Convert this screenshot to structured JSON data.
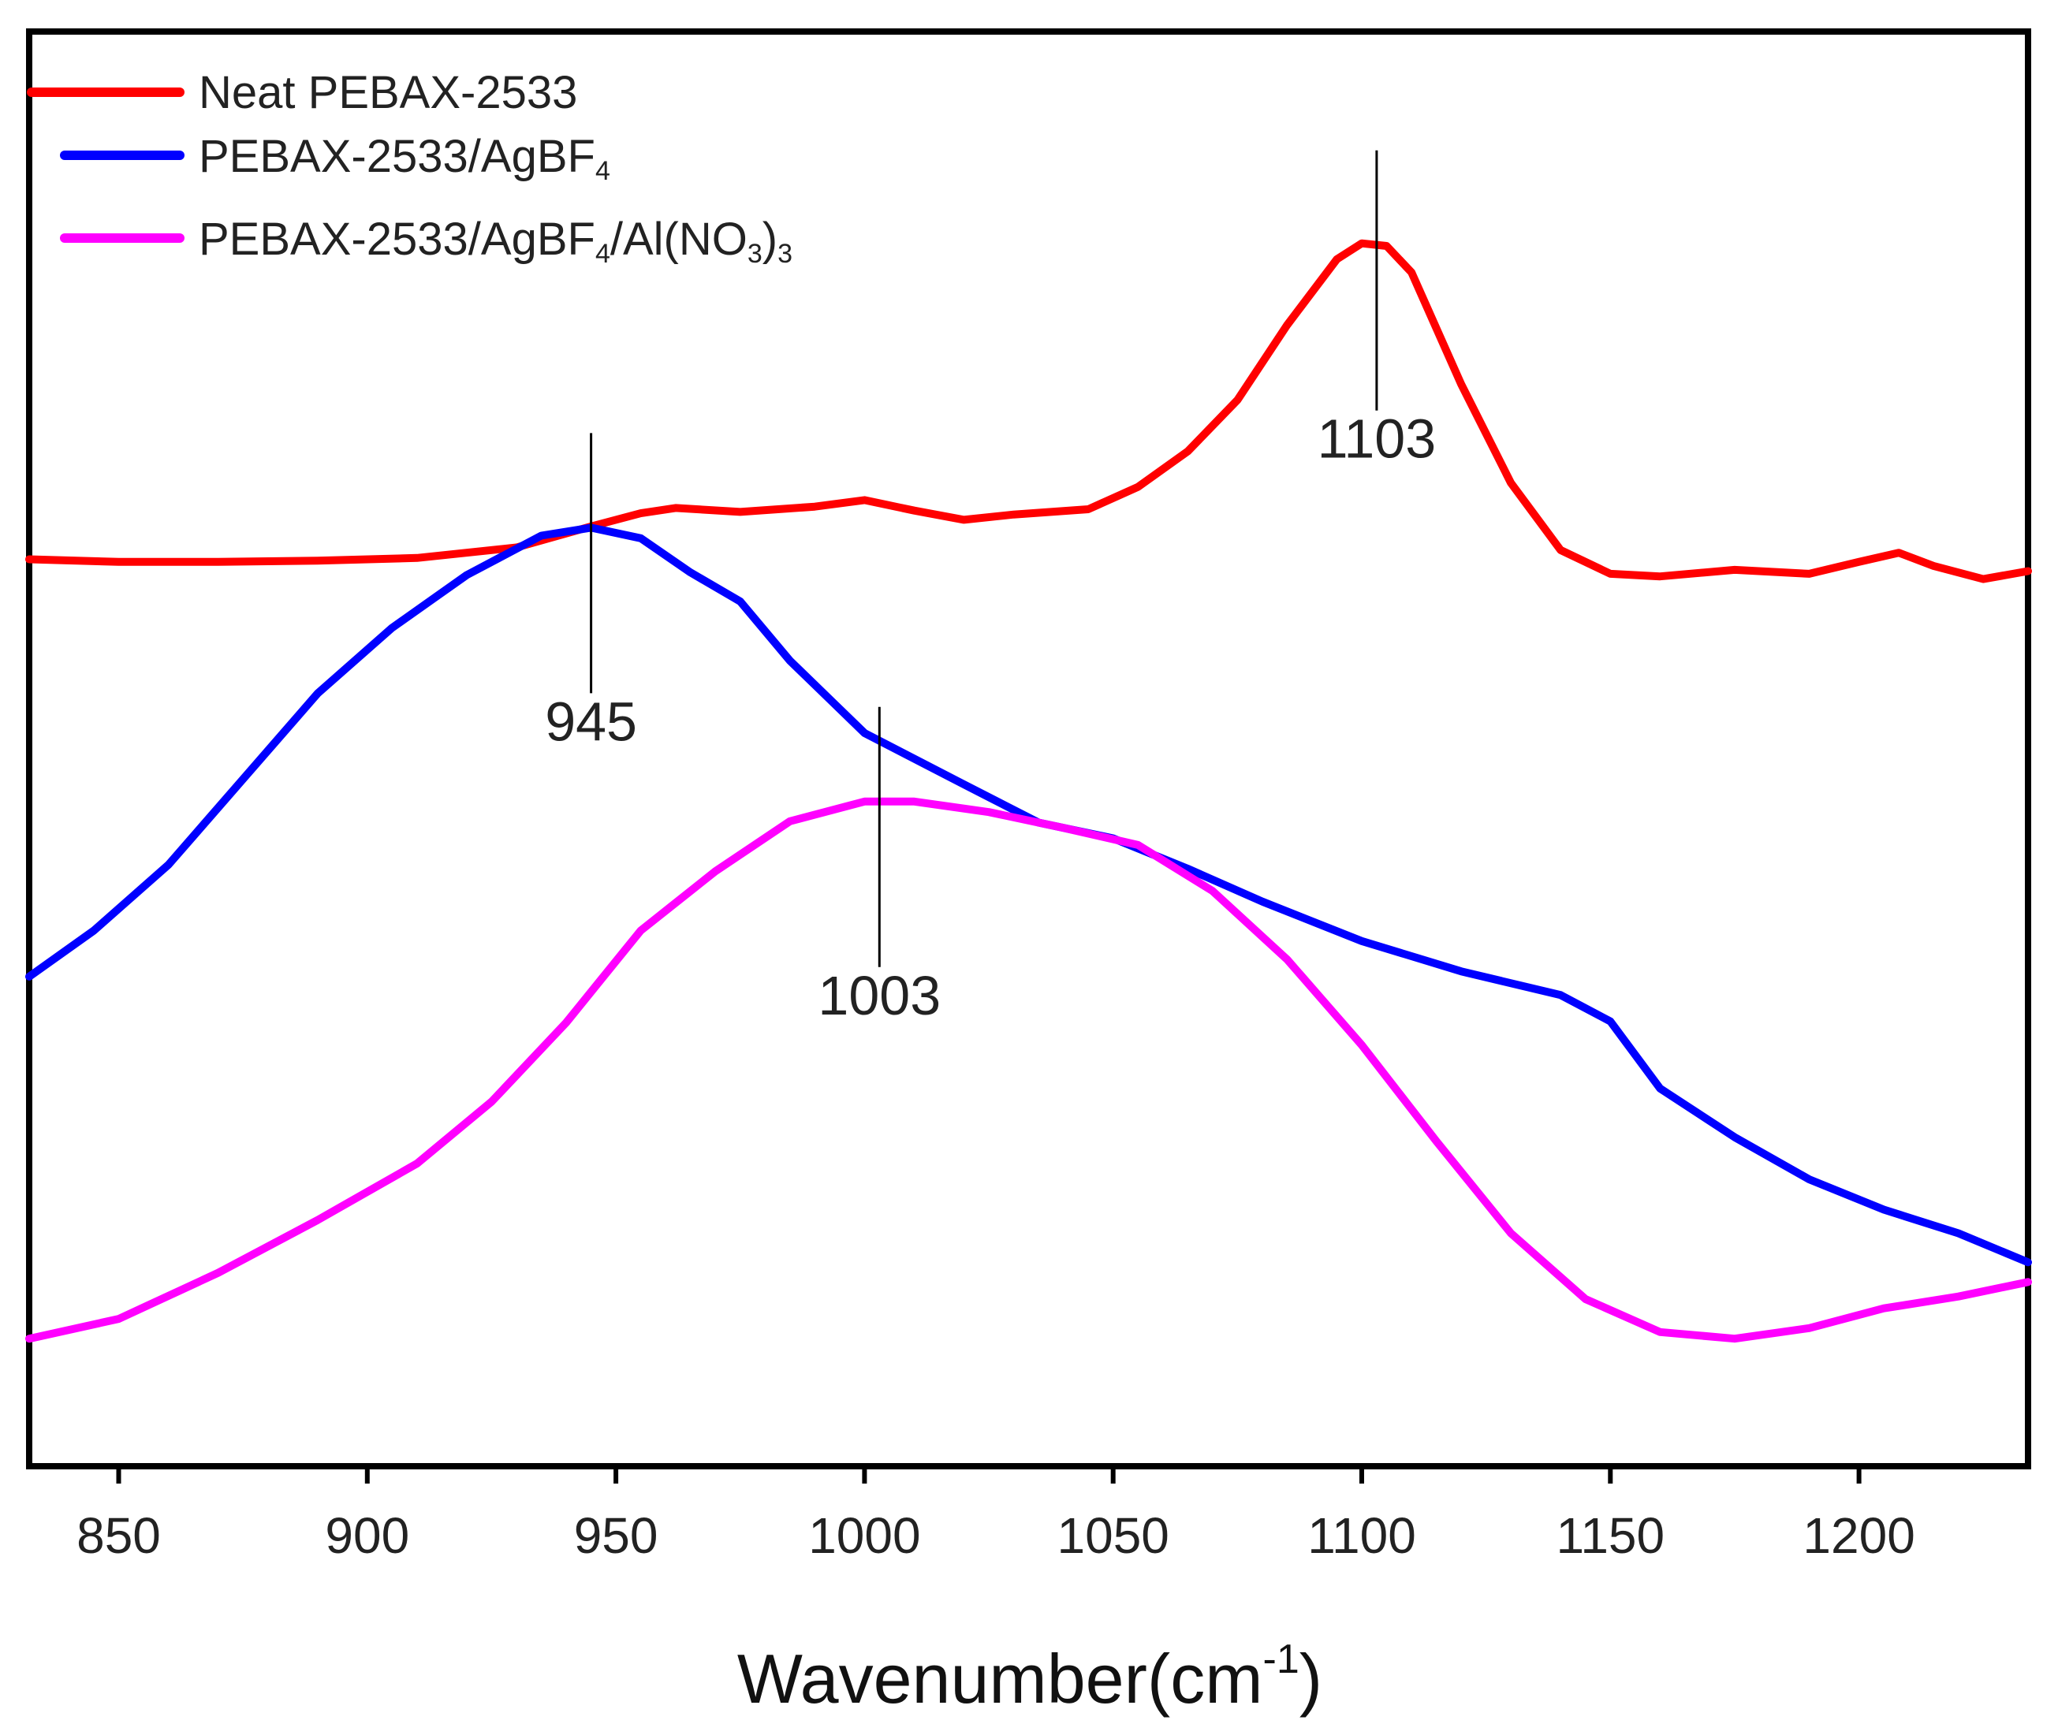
{
  "chart_data": {
    "type": "line",
    "title": "",
    "xlabel": "Wavenumber(cm",
    "xlabel_sup": "-1",
    "xlabel_close": ")",
    "ylabel": "",
    "xlim": [
      832,
      1234
    ],
    "ylim": [
      0,
      100
    ],
    "y_ticks_shown": false,
    "x_ticks": [
      850,
      900,
      950,
      1000,
      1050,
      1100,
      1150,
      1200
    ],
    "x_tick_labels": [
      "850",
      "900",
      "950",
      "1000",
      "1050",
      "1100",
      "1150",
      "1200"
    ],
    "grid": false,
    "legend_position": "top-left",
    "series": [
      {
        "name": "Neat PEBAX-2533",
        "legend": {
          "main": "Neat PEBAX-2533"
        },
        "color": "#ff0000",
        "x": [
          832,
          850,
          870,
          890,
          910,
          930,
          945,
          955,
          962,
          975,
          990,
          1000,
          1010,
          1020,
          1030,
          1045,
          1055,
          1065,
          1075,
          1085,
          1095,
          1100,
          1105,
          1110,
          1120,
          1130,
          1140,
          1150,
          1160,
          1175,
          1190,
          1200,
          1208,
          1215,
          1225,
          1234
        ],
        "y": [
          64.7,
          64.5,
          64.5,
          64.6,
          64.8,
          65.6,
          67.2,
          68.2,
          68.6,
          68.3,
          68.7,
          69.2,
          68.4,
          67.7,
          68.1,
          68.5,
          70.2,
          72.9,
          76.8,
          82.5,
          87.5,
          88.7,
          88.5,
          86.5,
          78.0,
          70.5,
          65.4,
          63.6,
          63.4,
          63.9,
          63.6,
          64.5,
          65.2,
          64.2,
          63.2,
          63.8
        ]
      },
      {
        "name": "PEBAX-2533/AgBF4",
        "legend": {
          "main": "PEBAX-2533/AgBF",
          "sub": "4"
        },
        "color": "#0000ff",
        "x": [
          832,
          845,
          860,
          875,
          890,
          905,
          920,
          935,
          945,
          955,
          965,
          975,
          985,
          1000,
          1020,
          1035,
          1050,
          1065,
          1080,
          1100,
          1120,
          1140,
          1150,
          1160,
          1175,
          1190,
          1205,
          1220,
          1234
        ],
        "y": [
          33.0,
          36.5,
          41.5,
          48.0,
          54.5,
          59.5,
          63.5,
          66.5,
          67.1,
          66.3,
          63.7,
          61.5,
          57.0,
          51.5,
          47.6,
          44.7,
          43.5,
          41.2,
          38.7,
          35.7,
          33.4,
          31.6,
          29.6,
          24.5,
          20.8,
          17.6,
          15.3,
          13.5,
          11.3
        ]
      },
      {
        "name": "PEBAX-2533/AgBF4/Al(NO3)3",
        "legend": {
          "main": "PEBAX-2533/AgBF",
          "sub1": "4",
          "mid": "/Al(NO",
          "sub2": "3",
          "end": ")",
          "sub3": "3"
        },
        "color": "#ff00ff",
        "x": [
          832,
          850,
          870,
          890,
          910,
          925,
          940,
          955,
          970,
          985,
          1000,
          1010,
          1025,
          1040,
          1055,
          1070,
          1085,
          1100,
          1115,
          1130,
          1145,
          1160,
          1175,
          1190,
          1205,
          1220,
          1234
        ],
        "y": [
          5.5,
          7.0,
          10.5,
          14.5,
          18.8,
          23.5,
          29.5,
          36.5,
          41.0,
          44.8,
          46.3,
          46.3,
          45.5,
          44.3,
          43.0,
          39.5,
          34.3,
          27.8,
          20.5,
          13.5,
          8.5,
          6.0,
          5.5,
          6.3,
          7.8,
          8.7,
          9.8
        ]
      }
    ],
    "annotations": [
      {
        "label": "1103",
        "x": 1103,
        "series": 0
      },
      {
        "label": "945",
        "x": 945,
        "series": 1
      },
      {
        "label": "1003",
        "x": 1003,
        "series": 2
      }
    ]
  }
}
